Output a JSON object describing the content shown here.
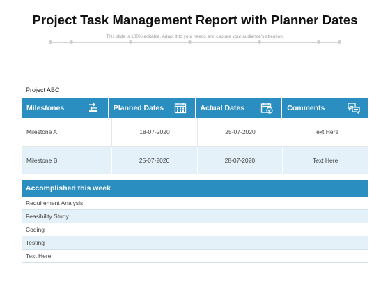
{
  "header": {
    "title": "Project Task Management Report with Planner Dates",
    "subtitle": "This slide is 100% editable. Adapt it to your needs and capture your audience's attention."
  },
  "project": {
    "label": "Project ABC"
  },
  "table": {
    "columns": [
      {
        "label": "Milestones",
        "icon": "route-icon"
      },
      {
        "label": "Planned Dates",
        "icon": "calendar-icon"
      },
      {
        "label": "Actual Dates",
        "icon": "calendar-check-icon"
      },
      {
        "label": "Comments",
        "icon": "chat-bubbles-icon"
      }
    ],
    "rows": [
      {
        "milestone": "Milestone A",
        "planned": "18-07-2020",
        "actual": "25-07-2020",
        "comment": "Text Here"
      },
      {
        "milestone": "Milestone B",
        "planned": "25-07-2020",
        "actual": "28-07-2020",
        "comment": "Text Here"
      }
    ]
  },
  "accomplished": {
    "title": "Accomplished this week",
    "items": [
      "Requirement Analysis",
      "Feasibility Study",
      "Coding",
      "Testing",
      "Text Here"
    ]
  },
  "colors": {
    "accent": "#2a8fc0",
    "row_alt": "#e4f1f8"
  }
}
